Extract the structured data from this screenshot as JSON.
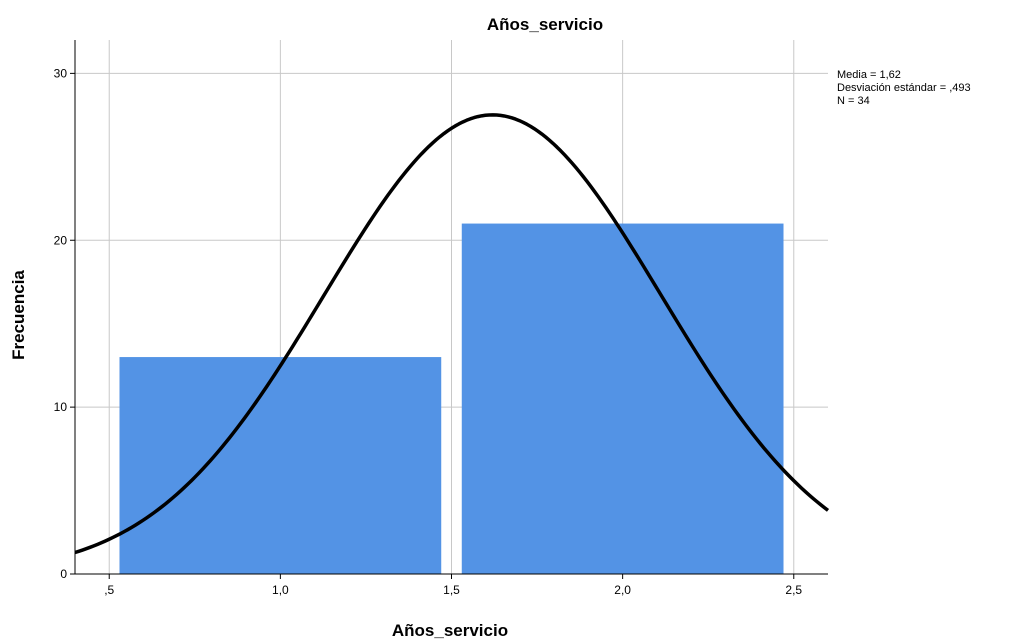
{
  "chart_data": {
    "type": "bar",
    "title": "Años_servicio",
    "xlabel": "Años_servicio",
    "ylabel": "Frecuencia",
    "xlim": [
      0.4,
      2.6
    ],
    "ylim": [
      0,
      32
    ],
    "x_ticks": [
      {
        "value": 0.5,
        "label": ",5"
      },
      {
        "value": 1.0,
        "label": "1,0"
      },
      {
        "value": 1.5,
        "label": "1,5"
      },
      {
        "value": 2.0,
        "label": "2,0"
      },
      {
        "value": 2.5,
        "label": "2,5"
      }
    ],
    "y_ticks": [
      {
        "value": 0,
        "label": "0"
      },
      {
        "value": 10,
        "label": "10"
      },
      {
        "value": 20,
        "label": "20"
      },
      {
        "value": 30,
        "label": "30"
      }
    ],
    "bins": [
      {
        "x0": 0.53,
        "x1": 1.47,
        "value": 13
      },
      {
        "x0": 1.53,
        "x1": 2.47,
        "value": 21
      }
    ],
    "normal_curve": {
      "mean": 1.62,
      "sd": 0.493,
      "n": 34,
      "bin_width": 1.0
    },
    "stats_lines": [
      "Media = 1,62",
      "Desviación estándar = ,493",
      "N = 34"
    ],
    "grid": true,
    "colors": {
      "bar": "#5393e5",
      "curve": "#000000",
      "grid": "#c8c8c8",
      "axis": "#000000"
    }
  }
}
